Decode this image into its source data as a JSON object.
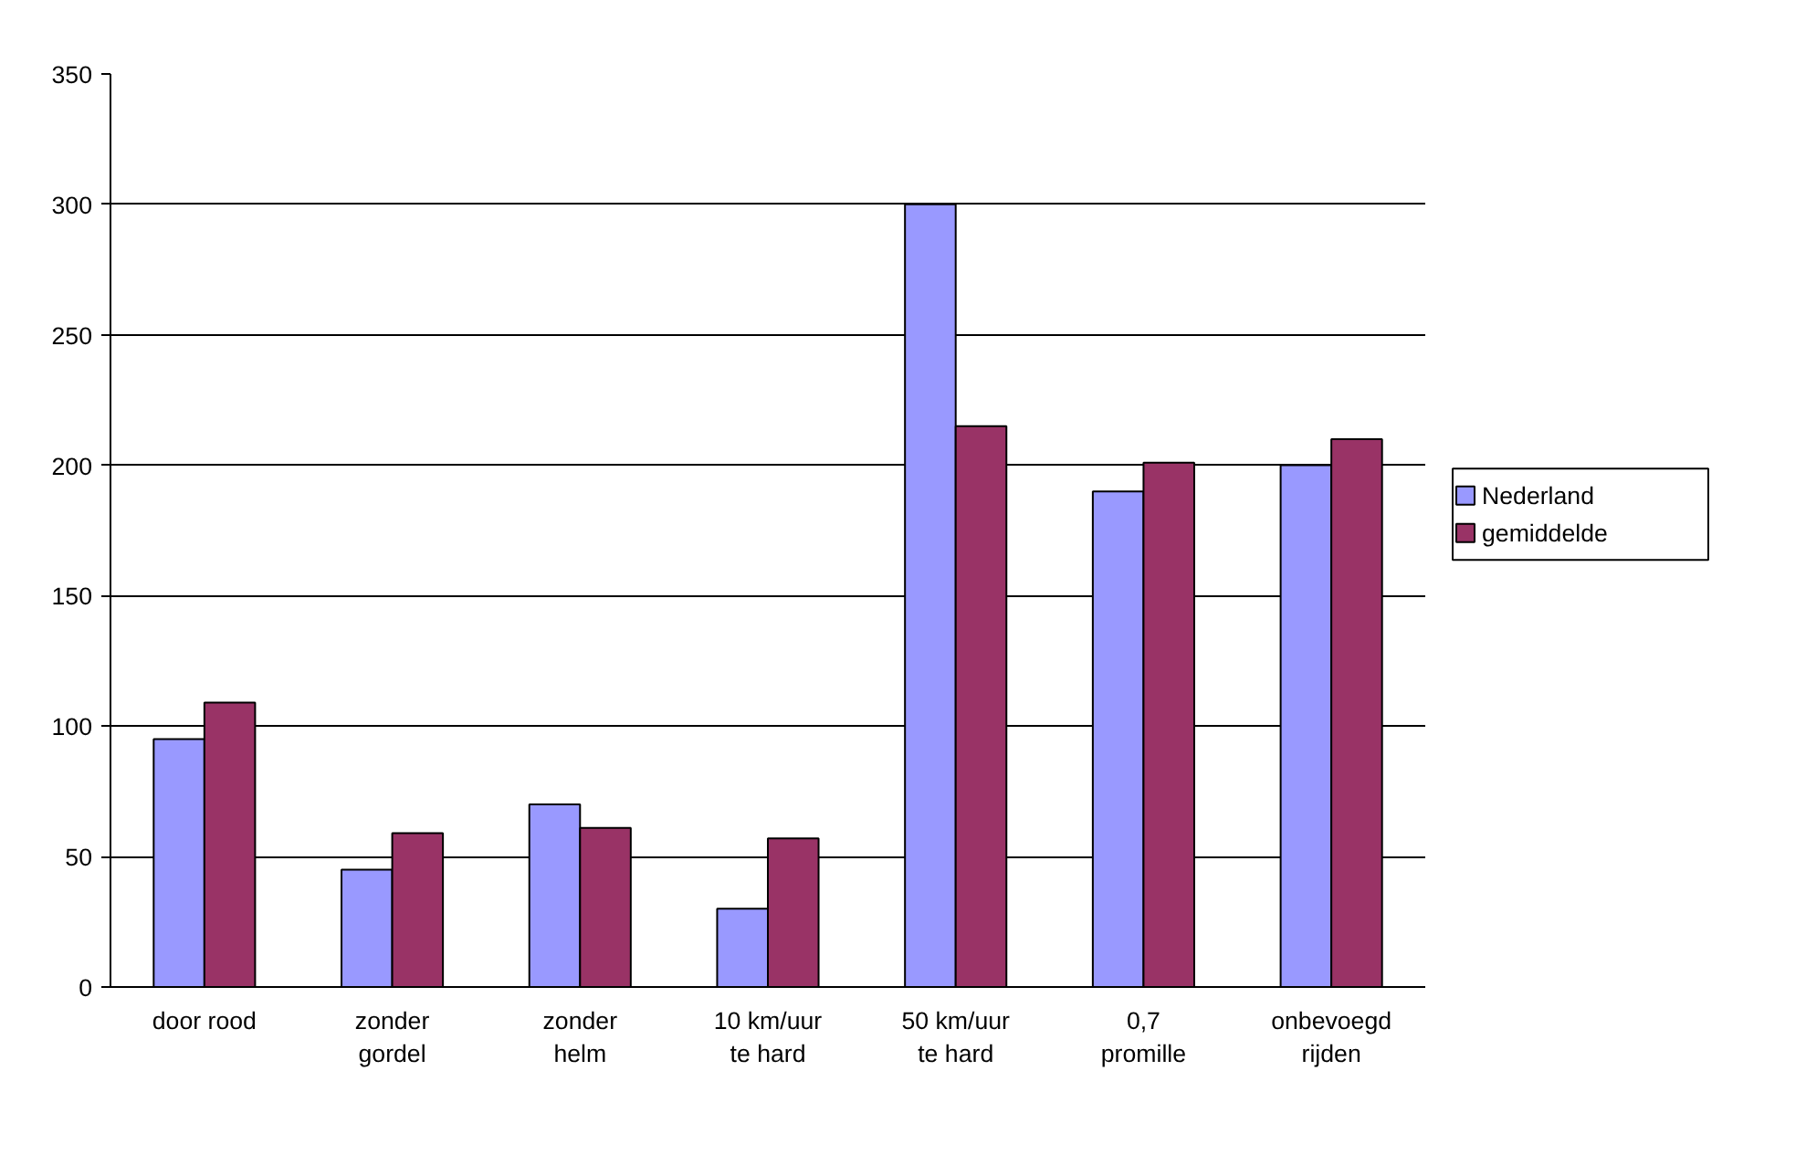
{
  "chart_data": {
    "type": "bar",
    "categories": [
      "door rood",
      "zonder\ngordel",
      "zonder\nhelm",
      "10 km/uur\nte hard",
      "50 km/uur\nte hard",
      "0,7\npromille",
      "onbevoegd\nrijden"
    ],
    "series": [
      {
        "name": "Nederland",
        "color": "#9999ff",
        "values": [
          95,
          45,
          70,
          30,
          300,
          190,
          200
        ]
      },
      {
        "name": "gemiddelde",
        "color": "#993366",
        "values": [
          109,
          59,
          61,
          57,
          215,
          201,
          210
        ]
      }
    ],
    "ylim": [
      0,
      350
    ],
    "yticks": [
      0,
      50,
      100,
      150,
      200,
      250,
      300,
      350
    ],
    "grid": "y",
    "legend": "right"
  }
}
